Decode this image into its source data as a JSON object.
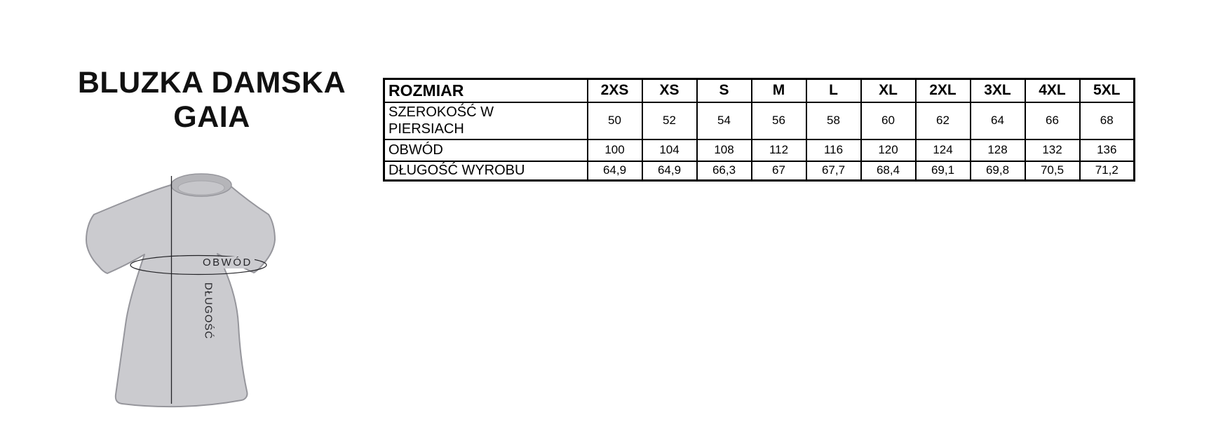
{
  "product": {
    "title_line1": "BLUZKA DAMSKA",
    "title_line2": "GAIA"
  },
  "diagram": {
    "labels": {
      "girth": "OBWÓD",
      "length": "DŁUGOŚĆ"
    },
    "colors": {
      "shirt_fill": "#cbcbcf",
      "shirt_outline": "#96969c",
      "collar_fill": "#b5b5b9",
      "collar_inner_fill": "#c6c6ca",
      "measure_line": "#232327"
    }
  },
  "size_table": {
    "header_label": "ROZMIAR",
    "sizes": [
      "2XS",
      "XS",
      "S",
      "M",
      "L",
      "XL",
      "2XL",
      "3XL",
      "4XL",
      "5XL"
    ],
    "rows": [
      {
        "key": "szerokosc",
        "label": "SZEROKOŚĆ W PIERSIACH",
        "values": [
          "50",
          "52",
          "54",
          "56",
          "58",
          "60",
          "62",
          "64",
          "66",
          "68"
        ]
      },
      {
        "key": "obwod",
        "label": "OBWÓD",
        "values": [
          "100",
          "104",
          "108",
          "112",
          "116",
          "120",
          "124",
          "128",
          "132",
          "136"
        ]
      },
      {
        "key": "dlugosc",
        "label": "DŁUGOŚĆ WYROBU",
        "values": [
          "64,9",
          "64,9",
          "66,3",
          "67",
          "67,7",
          "68,4",
          "69,1",
          "69,8",
          "70,5",
          "71,2"
        ]
      }
    ]
  }
}
